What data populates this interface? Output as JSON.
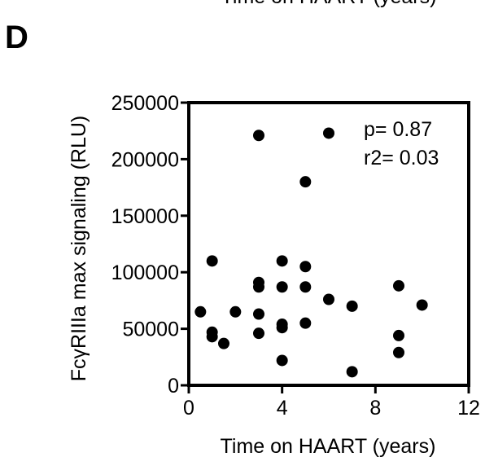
{
  "header_fragment": "Time on HAART (years)",
  "panel_label": "D",
  "chart_data": {
    "type": "scatter",
    "title": "",
    "xlabel": "Time on HAART (years)",
    "ylabel": "FcγRIIIa max signaling (RLU)",
    "xlim": [
      0,
      12
    ],
    "ylim": [
      0,
      250000
    ],
    "x_ticks": [
      0,
      4,
      8,
      12
    ],
    "y_ticks": [
      0,
      50000,
      100000,
      150000,
      200000,
      250000
    ],
    "x_tick_labels": [
      "0",
      "4",
      "8",
      "12"
    ],
    "y_tick_labels": [
      "0",
      "50000",
      "100000",
      "150000",
      "200000",
      "250000"
    ],
    "grid": false,
    "annotations": [
      "p= 0.87",
      "r2= 0.03"
    ],
    "points": [
      {
        "x": 0.5,
        "y": 65000
      },
      {
        "x": 1.0,
        "y": 110000
      },
      {
        "x": 1.0,
        "y": 47000
      },
      {
        "x": 1.0,
        "y": 43000
      },
      {
        "x": 1.5,
        "y": 37000
      },
      {
        "x": 2.0,
        "y": 65000
      },
      {
        "x": 3.0,
        "y": 221000
      },
      {
        "x": 3.0,
        "y": 91000
      },
      {
        "x": 3.0,
        "y": 87000
      },
      {
        "x": 3.0,
        "y": 63000
      },
      {
        "x": 3.0,
        "y": 46000
      },
      {
        "x": 4.0,
        "y": 110000
      },
      {
        "x": 4.0,
        "y": 87000
      },
      {
        "x": 4.0,
        "y": 54000
      },
      {
        "x": 4.0,
        "y": 51000
      },
      {
        "x": 4.0,
        "y": 22000
      },
      {
        "x": 5.0,
        "y": 180000
      },
      {
        "x": 5.0,
        "y": 105000
      },
      {
        "x": 5.0,
        "y": 87000
      },
      {
        "x": 5.0,
        "y": 55000
      },
      {
        "x": 6.0,
        "y": 223000
      },
      {
        "x": 6.0,
        "y": 76000
      },
      {
        "x": 7.0,
        "y": 70000
      },
      {
        "x": 7.0,
        "y": 12000
      },
      {
        "x": 9.0,
        "y": 88000
      },
      {
        "x": 9.0,
        "y": 44000
      },
      {
        "x": 9.0,
        "y": 29000
      },
      {
        "x": 10.0,
        "y": 71000
      }
    ]
  }
}
